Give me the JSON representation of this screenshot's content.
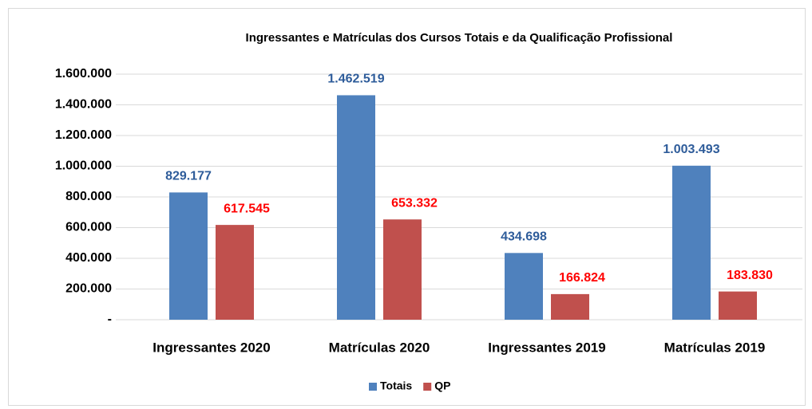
{
  "chart_data": {
    "type": "bar",
    "title": "Ingressantes e Matrículas dos Cursos Totais e da Qualificação Profissional",
    "categories": [
      "Ingressantes 2020",
      "Matrículas 2020",
      "Ingressantes 2019",
      "Matrículas 2019"
    ],
    "series": [
      {
        "name": "Totais",
        "color": "#4f81bd",
        "label_color": "#2e5c9a",
        "values": [
          829177,
          1462519,
          434698,
          1003493
        ],
        "value_labels": [
          "829.177",
          "1.462.519",
          "434.698",
          "1.003.493"
        ]
      },
      {
        "name": "QP",
        "color": "#c0504d",
        "label_color": "#ff0000",
        "values": [
          617545,
          653332,
          166824,
          183830
        ],
        "value_labels": [
          "617.545",
          "653.332",
          "166.824",
          "183.830"
        ]
      }
    ],
    "ylim": [
      0,
      1600000
    ],
    "yticks": [
      {
        "value": 0,
        "label": "-"
      },
      {
        "value": 200000,
        "label": "200.000"
      },
      {
        "value": 400000,
        "label": "400.000"
      },
      {
        "value": 600000,
        "label": "600.000"
      },
      {
        "value": 800000,
        "label": "800.000"
      },
      {
        "value": 1000000,
        "label": "1.000.000"
      },
      {
        "value": 1200000,
        "label": "1.200.000"
      },
      {
        "value": 1400000,
        "label": "1.400.000"
      },
      {
        "value": 1600000,
        "label": "1.600.000"
      }
    ],
    "grid": true,
    "legend": "bottom"
  }
}
